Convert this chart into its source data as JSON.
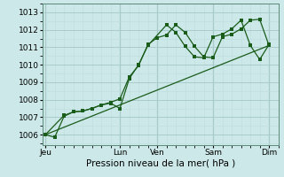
{
  "bg_color": "#cce8e8",
  "grid_color_major": "#aacccc",
  "grid_color_minor": "#c0dede",
  "line_color": "#1a5c1a",
  "title": "Pression niveau de la mer( hPa )",
  "ylabel_ticks": [
    1006,
    1007,
    1008,
    1009,
    1010,
    1011,
    1012,
    1013
  ],
  "ylim": [
    1005.4,
    1013.5
  ],
  "x_tick_labels": [
    "Jeu",
    "Lun",
    "Ven",
    "Sam",
    "Dim"
  ],
  "x_tick_positions": [
    0,
    8,
    12,
    18,
    24
  ],
  "xlim": [
    -0.3,
    25.0
  ],
  "vline_positions": [
    0,
    8,
    12,
    18,
    24
  ],
  "trend_x": [
    0,
    24
  ],
  "trend_y": [
    1006.0,
    1011.1
  ],
  "s1_x": [
    0,
    1,
    2,
    3,
    4,
    5,
    6,
    7,
    8,
    9,
    10,
    11,
    12,
    13,
    14,
    15,
    16,
    17,
    18,
    19,
    20,
    21,
    22,
    23,
    24
  ],
  "s1_y": [
    1006.0,
    1005.85,
    1007.05,
    1007.3,
    1007.35,
    1007.5,
    1007.7,
    1007.85,
    1008.05,
    1009.3,
    1009.95,
    1011.15,
    1011.55,
    1011.7,
    1012.28,
    1011.85,
    1011.05,
    1010.45,
    1010.4,
    1011.6,
    1011.75,
    1012.05,
    1012.55,
    1012.6,
    1011.1
  ],
  "s2_x": [
    0,
    2,
    3,
    4,
    5,
    6,
    7,
    8,
    9,
    10,
    11,
    13,
    14,
    15,
    16,
    17,
    18,
    19,
    20,
    21,
    22,
    23,
    24
  ],
  "s2_y": [
    1006.0,
    1007.1,
    1007.3,
    1007.35,
    1007.5,
    1007.7,
    1007.8,
    1007.5,
    1009.2,
    1010.0,
    1011.1,
    1012.28,
    1011.85,
    1011.05,
    1010.45,
    1010.4,
    1011.6,
    1011.75,
    1012.05,
    1012.55,
    1011.1,
    1010.3,
    1011.15
  ],
  "title_fontsize": 7.5,
  "tick_fontsize": 6.5,
  "marker_size": 2.2,
  "line_width": 0.9
}
